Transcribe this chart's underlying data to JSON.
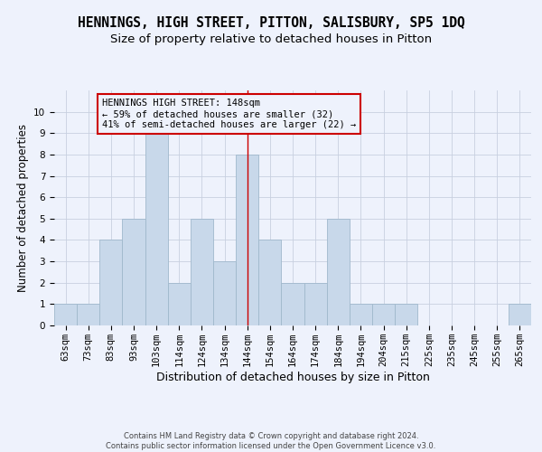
{
  "title": "HENNINGS, HIGH STREET, PITTON, SALISBURY, SP5 1DQ",
  "subtitle": "Size of property relative to detached houses in Pitton",
  "xlabel": "Distribution of detached houses by size in Pitton",
  "ylabel": "Number of detached properties",
  "categories": [
    "63sqm",
    "73sqm",
    "83sqm",
    "93sqm",
    "103sqm",
    "114sqm",
    "124sqm",
    "134sqm",
    "144sqm",
    "154sqm",
    "164sqm",
    "174sqm",
    "184sqm",
    "194sqm",
    "204sqm",
    "215sqm",
    "225sqm",
    "235sqm",
    "245sqm",
    "255sqm",
    "265sqm"
  ],
  "values": [
    1,
    1,
    4,
    5,
    9,
    2,
    5,
    3,
    8,
    4,
    2,
    2,
    5,
    1,
    1,
    1,
    0,
    0,
    0,
    0,
    1
  ],
  "bar_color": "#c8d8ea",
  "bar_edge_color": "#a0b8cc",
  "vline_x_idx": 8,
  "vline_color": "#cc0000",
  "ylim": [
    0,
    11
  ],
  "yticks": [
    0,
    1,
    2,
    3,
    4,
    5,
    6,
    7,
    8,
    9,
    10,
    11
  ],
  "annotation_title": "HENNINGS HIGH STREET: 148sqm",
  "annotation_line1": "← 59% of detached houses are smaller (32)",
  "annotation_line2": "41% of semi-detached houses are larger (22) →",
  "annotation_box_edgecolor": "#cc0000",
  "footer_line1": "Contains HM Land Registry data © Crown copyright and database right 2024.",
  "footer_line2": "Contains public sector information licensed under the Open Government Licence v3.0.",
  "background_color": "#eef2fc",
  "grid_color": "#c8d0e0",
  "title_fontsize": 10.5,
  "subtitle_fontsize": 9.5,
  "xlabel_fontsize": 9,
  "ylabel_fontsize": 8.5,
  "tick_fontsize": 7.5,
  "annotation_fontsize": 7.5,
  "footer_fontsize": 6
}
